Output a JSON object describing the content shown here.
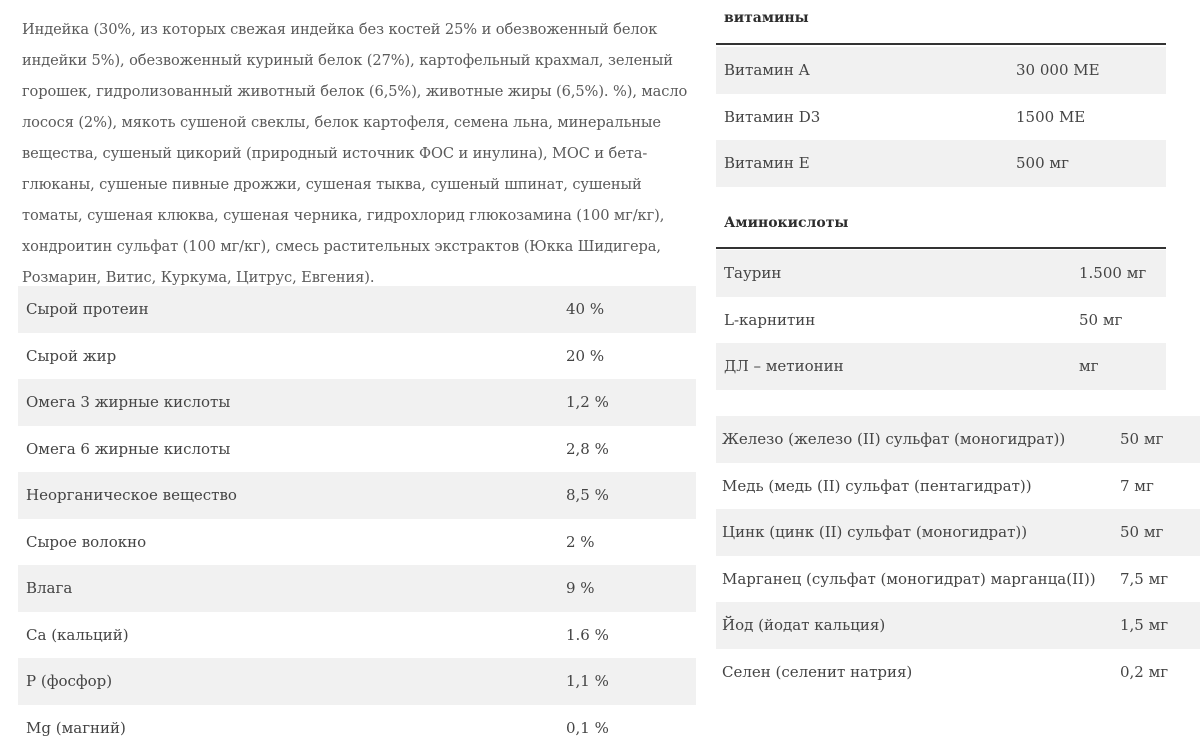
{
  "composition": {
    "text": "Индейка (30%, из которых свежая индейка без костей 25% и обезвоженный белок индейки 5%), обезвоженный куриный белок (27%), картофельный крахмал, зеленый горошек, гидролизованный животный белок (6,5%), животные жиры (6,5%). %), масло лосося (2%), мякоть сушеной свеклы, белок картофеля, семена льна, минеральные вещества, сушеный цикорий (природный источник ФОС и инулина), МОС и бета-глюканы, сушеные пивные дрожжи, сушеная тыква, сушеный шпинат, сушеный томаты, сушеная клюква, сушеная черника, гидрохлорид глюкозамина (100 мг/кг), хондроитин сульфат (100 мг/кг), смесь растительных экстрактов (Юкка Шидигера, Розмарин, Витис, Куркума, Цитрус, Евгения)."
  },
  "analysis": [
    {
      "name": "Сырой протеин",
      "value": "40 %"
    },
    {
      "name": "Сырой жир",
      "value": "20 %"
    },
    {
      "name": "Омега 3 жирные кислоты",
      "value": "1,2 %"
    },
    {
      "name": "Омега 6 жирные кислоты",
      "value": "2,8 %"
    },
    {
      "name": "Неорганическое вещество",
      "value": "8,5 %"
    },
    {
      "name": "Сырое волокно",
      "value": "2 %"
    },
    {
      "name": "Влага",
      "value": "9 %"
    },
    {
      "name": "Ca (кальций)",
      "value": "1.6 %"
    },
    {
      "name": "P (фосфор)",
      "value": "1,1 %"
    },
    {
      "name": "Mg (магний)",
      "value": "0,1 %"
    }
  ],
  "vitamins": {
    "title": "витамины",
    "rows": [
      {
        "name": "Витамин A",
        "value": "30 000 МЕ"
      },
      {
        "name": "Витамин D3",
        "value": "1500 МЕ"
      },
      {
        "name": "Витамин E",
        "value": "500 мг"
      }
    ]
  },
  "amino": {
    "title": "Аминокислоты",
    "rows": [
      {
        "name": "Таурин",
        "value": "1.500 мг"
      },
      {
        "name": "L-карнитин",
        "value": "50 мг"
      },
      {
        "name": "ДЛ – метионин",
        "value": "мг"
      }
    ]
  },
  "minerals": [
    {
      "name": "Железо (железо (II) сульфат (моногидрат))",
      "value": "50 мг"
    },
    {
      "name": "Медь (медь (II) сульфат (пентагидрат))",
      "value": "7 мг"
    },
    {
      "name": "Цинк (цинк (II) сульфат (моногидрат))",
      "value": "50 мг"
    },
    {
      "name": "Марганец (сульфат (моногидрат) марганца(II))",
      "value": "7,5 мг"
    },
    {
      "name": "Йод (йодат кальция)",
      "value": "1,5 мг"
    },
    {
      "name": "Селен (селенит натрия)",
      "value": "0,2 мг"
    }
  ]
}
